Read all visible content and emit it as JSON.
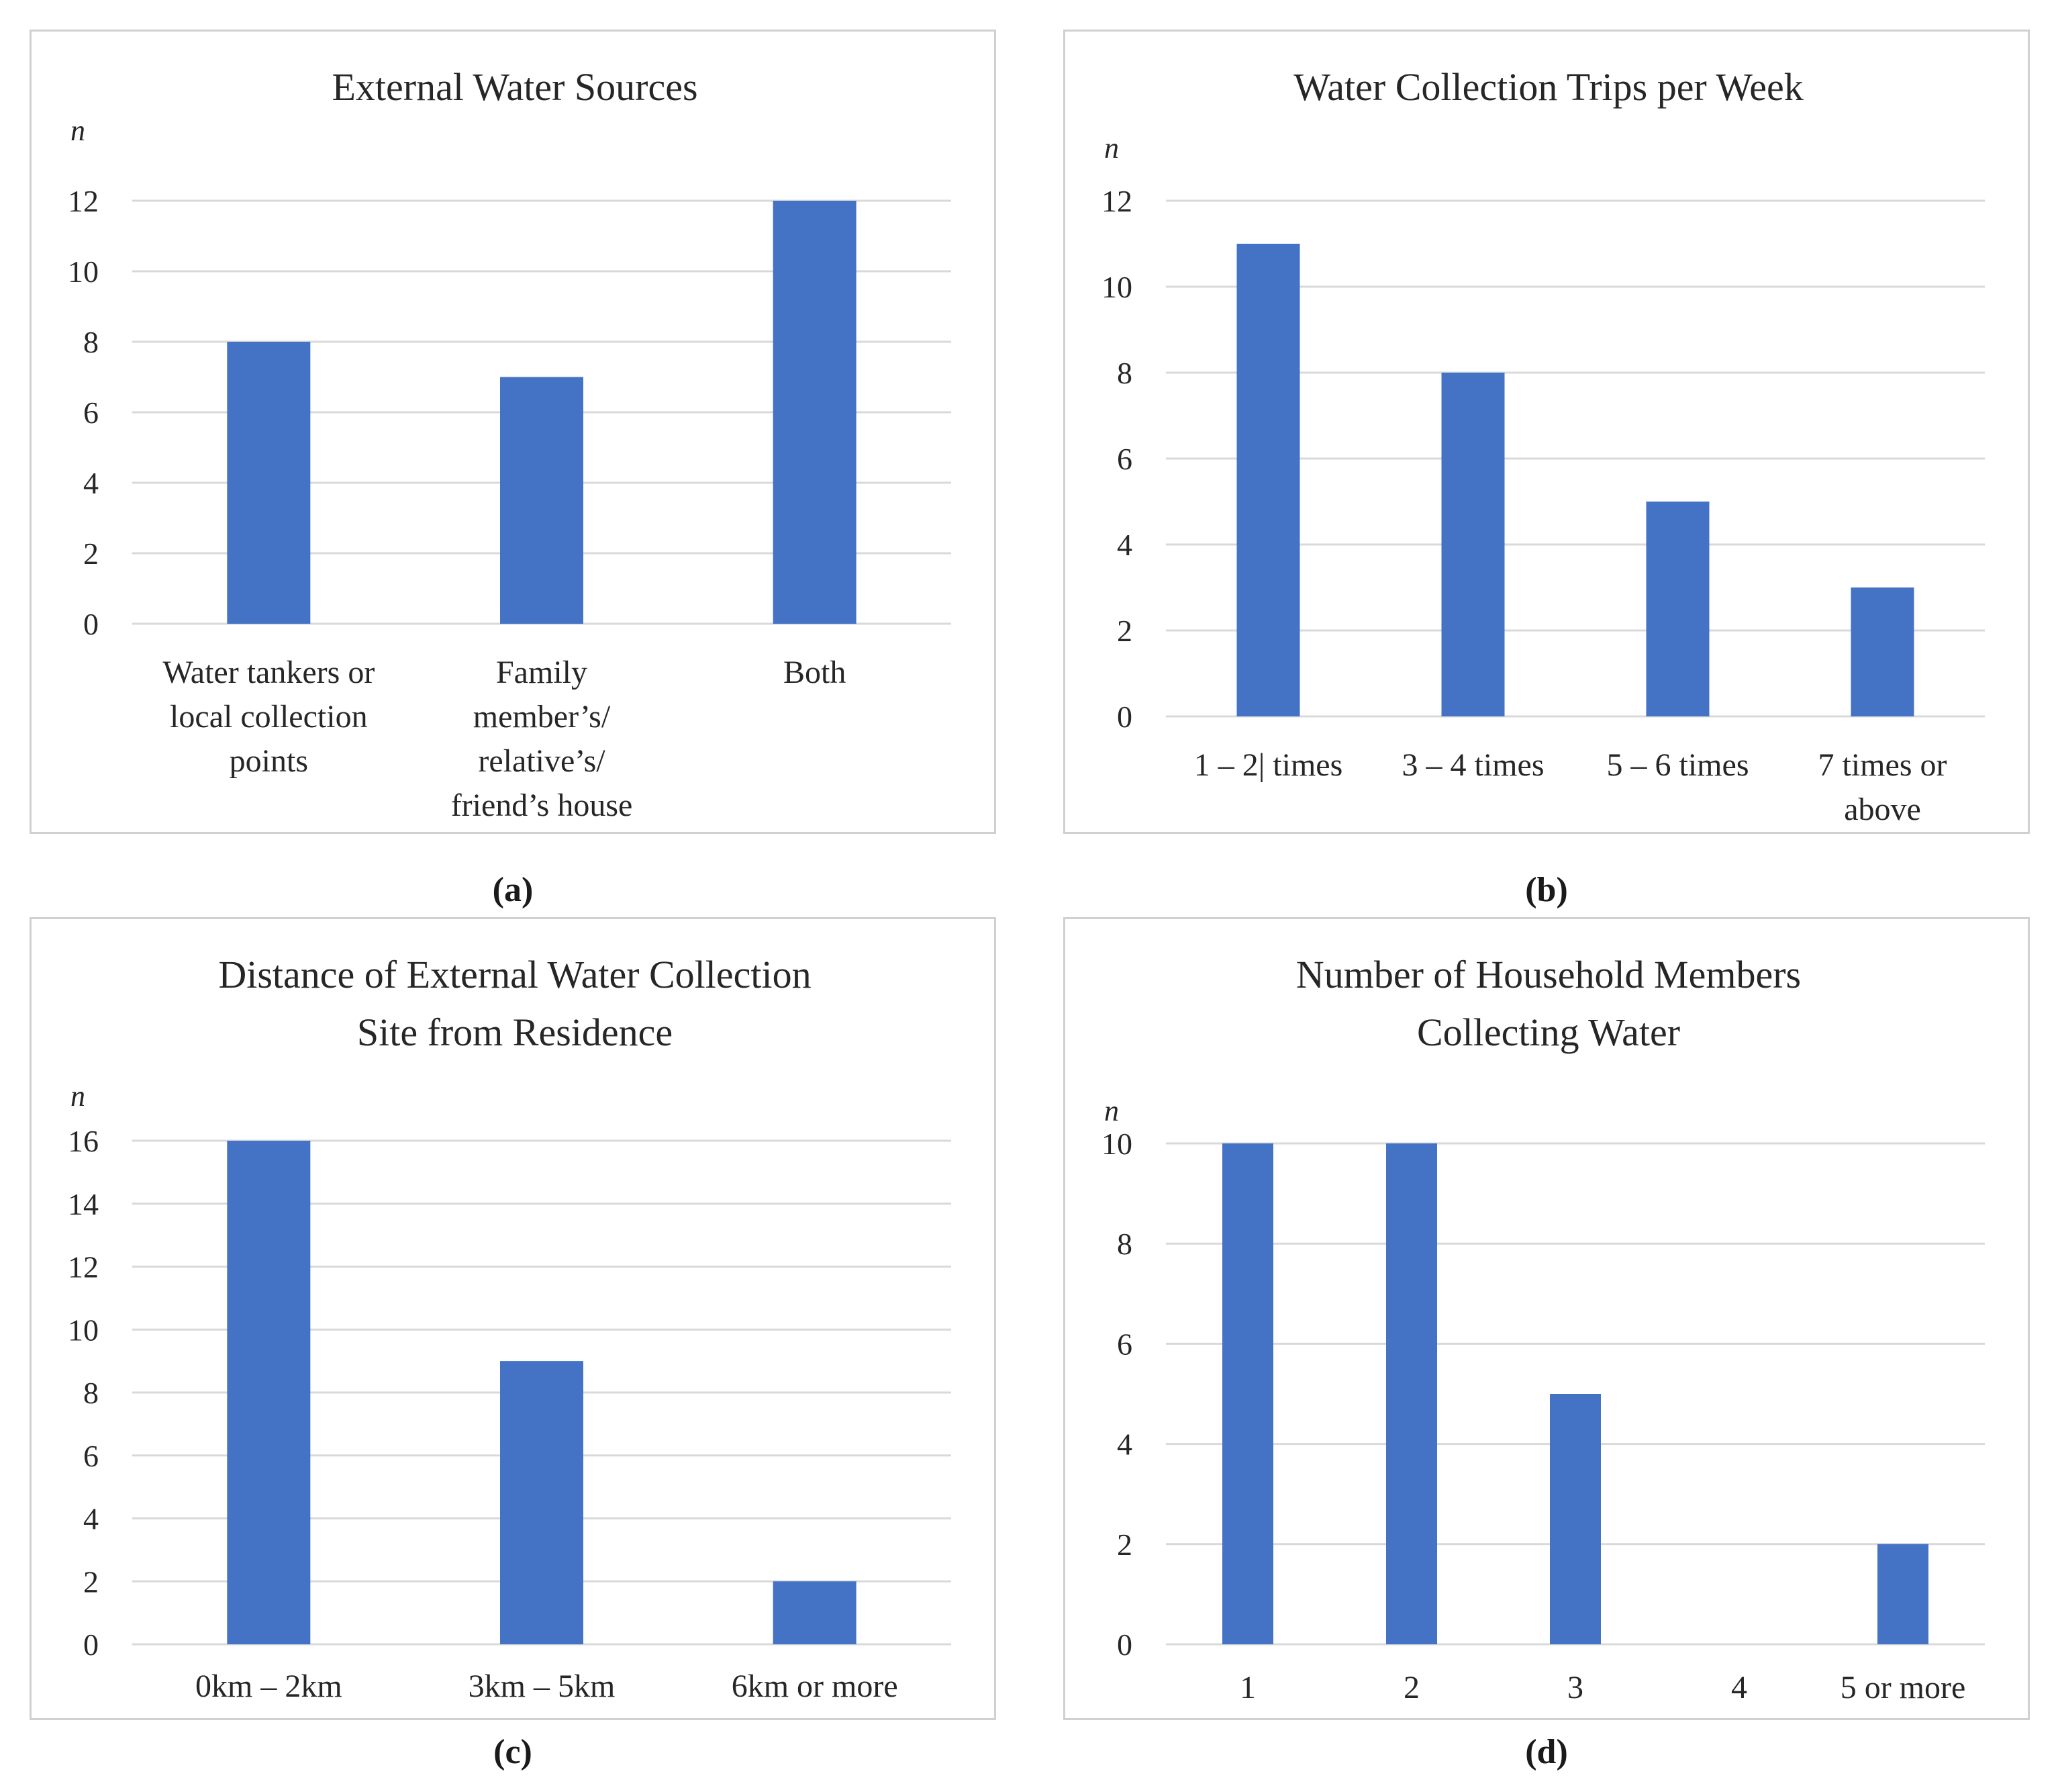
{
  "chart_data": [
    {
      "id": "a",
      "type": "bar",
      "title": [
        "External Water Sources"
      ],
      "ylabel": "n",
      "ylim": [
        0,
        12
      ],
      "yticks": [
        0,
        2,
        4,
        6,
        8,
        10,
        12
      ],
      "categories": [
        [
          "Water tankers or",
          "local collection",
          "points"
        ],
        [
          "Family",
          "member’s/",
          "relative’s/",
          "friend’s house"
        ],
        [
          "Both"
        ]
      ],
      "values": [
        8,
        7,
        12
      ],
      "caption": "(a)",
      "color": "#4472c4"
    },
    {
      "id": "b",
      "type": "bar",
      "title": [
        "Water Collection Trips per Week"
      ],
      "ylabel": "n",
      "ylim": [
        0,
        12
      ],
      "yticks": [
        0,
        2,
        4,
        6,
        8,
        10,
        12
      ],
      "categories": [
        [
          "1 – 2| times"
        ],
        [
          "3 – 4 times"
        ],
        [
          "5 – 6 times"
        ],
        [
          "7 times or",
          "above"
        ]
      ],
      "values": [
        11,
        8,
        5,
        3
      ],
      "caption": "(b)",
      "color": "#4472c4"
    },
    {
      "id": "c",
      "type": "bar",
      "title": [
        "Distance of External Water Collection",
        "Site from Residence"
      ],
      "ylabel": "n",
      "ylim": [
        0,
        16
      ],
      "yticks": [
        0,
        2,
        4,
        6,
        8,
        10,
        12,
        14,
        16
      ],
      "categories": [
        [
          "0km – 2km"
        ],
        [
          "3km – 5km"
        ],
        [
          "6km or more"
        ]
      ],
      "values": [
        16,
        9,
        2
      ],
      "caption": "(c)",
      "color": "#4472c4"
    },
    {
      "id": "d",
      "type": "bar",
      "title": [
        "Number of Household Members",
        "Collecting Water"
      ],
      "ylabel": "n",
      "ylim": [
        0,
        10
      ],
      "yticks": [
        0,
        2,
        4,
        6,
        8,
        10
      ],
      "categories": [
        [
          "1"
        ],
        [
          "2"
        ],
        [
          "3"
        ],
        [
          "4"
        ],
        [
          "5 or more"
        ]
      ],
      "values": [
        10,
        10,
        5,
        0,
        2
      ],
      "caption": "(d)",
      "color": "#4472c4"
    }
  ]
}
